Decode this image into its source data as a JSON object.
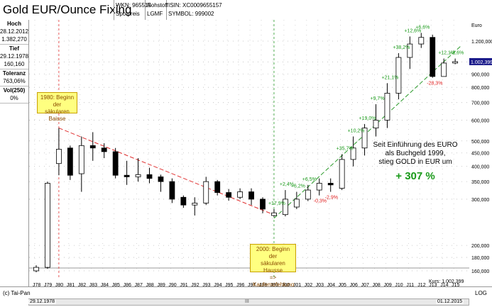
{
  "header": {
    "title": "Gold EUR/Ounce Fixing",
    "wkn_label": "WKN: 965515",
    "type": "Rohstoff",
    "isin": "ISIN: XC0009655157",
    "price_type": "Spotpreis",
    "exchange": "LGMF",
    "symbol": "SYMBOL: 999002"
  },
  "panel": {
    "high_label": "Hoch",
    "high_date": "28.12.2012",
    "high_value": "1.382,270",
    "low_label": "Tief",
    "low_date": "29.12.1978",
    "low_value": "160,160",
    "tol_label": "Toleranz",
    "tol_value": "763,06%",
    "vol_label": "Vol(250)",
    "vol_value": "0%"
  },
  "footer": {
    "credit": "(c) Tai-Pan",
    "log": "LOG",
    "start_date": "29.12.1978",
    "end_date": "01.12.2015",
    "kurs": "Kurs: 1.002,399",
    "scroll_mark": "III"
  },
  "annotations": {
    "box1980_line1": "1980: Beginn der",
    "box1980_line2": "säkularen Baisse",
    "box2000_line1": "2000: Beginn der",
    "box2000_line2": "säkularen Hausse",
    "box2000_line3": "=> Kaufempfehlung",
    "text_line1": "Seit Einführung des EURO",
    "text_line2": "als Buchgeld 1999,",
    "text_line3": "stieg  GOLD in EUR um",
    "big_pct": "+ 307 %"
  },
  "colors": {
    "up": "#ffffff",
    "down": "#000000",
    "pos_label": "#1a9a1a",
    "neg_label": "#e02020",
    "downtrend": "#e03030",
    "uptrend": "#2a9a2a",
    "vline_1980": "#e03030",
    "vline_1999": "#2a9a2a",
    "last_price_bg": "#1a1a8a"
  },
  "chart_data": {
    "type": "candlestick",
    "title": "Gold EUR/Ounce Fixing",
    "scale": "log",
    "currency_label": "Euro",
    "y_ticks": [
      160000,
      180000,
      200000,
      300000,
      350000,
      400000,
      450000,
      500000,
      600000,
      700000,
      800000,
      900000,
      1000000,
      1200000
    ],
    "y_tick_labels": [
      "160,000",
      "180,000",
      "200,000",
      "300,000",
      "350,000",
      "400,000",
      "450,000",
      "500,000",
      "600,000",
      "700,000",
      "800,000",
      "900,000",
      "1.000,000",
      "1.200,000"
    ],
    "last_price_label": "1.002,399",
    "x_labels": [
      "J78",
      "J79",
      "J80",
      "J81",
      "J82",
      "J83",
      "J84",
      "J85",
      "J86",
      "J87",
      "J88",
      "J89",
      "J90",
      "J91",
      "J92",
      "J93",
      "J94",
      "J95",
      "J96",
      "J97",
      "J98",
      "J99",
      "J00",
      "J01",
      "J02",
      "J03",
      "J04",
      "J05",
      "J06",
      "J07",
      "J08",
      "J09",
      "J10",
      "J11",
      "J12",
      "J13",
      "J14",
      "J15"
    ],
    "candles": [
      {
        "x": "J78",
        "open": 160000,
        "close": 165000,
        "high": 168000,
        "low": 158000
      },
      {
        "x": "J79",
        "open": 165000,
        "close": 345000,
        "high": 350000,
        "low": 163000
      },
      {
        "x": "J80",
        "open": 410000,
        "close": 465000,
        "high": 560000,
        "low": 370000
      },
      {
        "x": "J81",
        "open": 470000,
        "close": 370000,
        "high": 480000,
        "low": 355000
      },
      {
        "x": "J82",
        "open": 375000,
        "close": 480000,
        "high": 520000,
        "low": 320000
      },
      {
        "x": "J83",
        "open": 480000,
        "close": 470000,
        "high": 540000,
        "low": 420000
      },
      {
        "x": "J84",
        "open": 470000,
        "close": 455000,
        "high": 490000,
        "low": 430000
      },
      {
        "x": "J85",
        "open": 455000,
        "close": 370000,
        "high": 470000,
        "low": 360000
      },
      {
        "x": "J86",
        "open": 370000,
        "close": 365000,
        "high": 420000,
        "low": 340000
      },
      {
        "x": "J87",
        "open": 365000,
        "close": 372000,
        "high": 430000,
        "low": 350000
      },
      {
        "x": "J88",
        "open": 372000,
        "close": 360000,
        "high": 395000,
        "low": 345000
      },
      {
        "x": "J89",
        "open": 365000,
        "close": 350000,
        "high": 372000,
        "low": 320000
      },
      {
        "x": "J90",
        "open": 350000,
        "close": 300000,
        "high": 360000,
        "low": 290000
      },
      {
        "x": "J91",
        "open": 305000,
        "close": 285000,
        "high": 310000,
        "low": 278000
      },
      {
        "x": "J92",
        "open": 285000,
        "close": 290000,
        "high": 305000,
        "low": 260000
      },
      {
        "x": "J93",
        "open": 290000,
        "close": 350000,
        "high": 365000,
        "low": 285000
      },
      {
        "x": "J94",
        "open": 350000,
        "close": 318000,
        "high": 355000,
        "low": 310000
      },
      {
        "x": "J95",
        "open": 318000,
        "close": 305000,
        "high": 328000,
        "low": 296000
      },
      {
        "x": "J96",
        "open": 305000,
        "close": 320000,
        "high": 330000,
        "low": 300000
      },
      {
        "x": "J97",
        "open": 320000,
        "close": 300000,
        "high": 330000,
        "low": 285000
      },
      {
        "x": "J98",
        "open": 300000,
        "close": 275000,
        "high": 305000,
        "low": 265000
      },
      {
        "x": "J99",
        "open": 260000,
        "close": 266000,
        "high": 275000,
        "low": 257000
      },
      {
        "x": "J00",
        "open": 262000,
        "close": 300000,
        "high": 325000,
        "low": 258000
      },
      {
        "x": "J01",
        "open": 280000,
        "close": 300000,
        "high": 320000,
        "low": 275000
      },
      {
        "x": "J02",
        "open": 300000,
        "close": 325000,
        "high": 340000,
        "low": 295000
      },
      {
        "x": "J03",
        "open": 325000,
        "close": 345000,
        "high": 360000,
        "low": 310000
      },
      {
        "x": "J04",
        "open": 345000,
        "close": 340000,
        "high": 360000,
        "low": 320000
      },
      {
        "x": "J05",
        "open": 330000,
        "close": 425000,
        "high": 445000,
        "low": 325000
      },
      {
        "x": "J06",
        "open": 425000,
        "close": 470000,
        "high": 520000,
        "low": 400000
      },
      {
        "x": "J07",
        "open": 470000,
        "close": 560000,
        "high": 580000,
        "low": 440000
      },
      {
        "x": "J08",
        "open": 560000,
        "close": 600000,
        "high": 690000,
        "low": 520000
      },
      {
        "x": "J09",
        "open": 600000,
        "close": 760000,
        "high": 830000,
        "low": 560000
      },
      {
        "x": "J10",
        "open": 760000,
        "close": 1040000,
        "high": 1080000,
        "low": 720000
      },
      {
        "x": "J11",
        "open": 1040000,
        "close": 1170000,
        "high": 1250000,
        "low": 940000
      },
      {
        "x": "J12",
        "open": 1170000,
        "close": 1240000,
        "high": 1290000,
        "low": 1130000
      },
      {
        "x": "J13",
        "open": 1240000,
        "close": 880000,
        "high": 1270000,
        "low": 870000
      },
      {
        "x": "J14",
        "open": 880000,
        "close": 990000,
        "high": 1030000,
        "low": 880000
      },
      {
        "x": "J15",
        "open": 990000,
        "close": 1002399,
        "high": 1030000,
        "low": 980000
      }
    ],
    "pct_labels": [
      {
        "x": "J99",
        "text": "+17,9%",
        "value": 17.9
      },
      {
        "x": "J00",
        "text": "+2,4%",
        "value": 2.4
      },
      {
        "x": "J01",
        "text": "+6,2%",
        "value": 6.2
      },
      {
        "x": "J02",
        "text": "+6,5%",
        "value": 6.5
      },
      {
        "x": "J03",
        "text": "-0,3%",
        "value": -0.3
      },
      {
        "x": "J04",
        "text": "-2,9%",
        "value": -2.9
      },
      {
        "x": "J05",
        "text": "+35,7%",
        "value": 35.7
      },
      {
        "x": "J06",
        "text": "+10,2%",
        "value": 10.2
      },
      {
        "x": "J07",
        "text": "+19,0%",
        "value": 19.0
      },
      {
        "x": "J08",
        "text": "+9,7%",
        "value": 9.7
      },
      {
        "x": "J09",
        "text": "+21,1%",
        "value": 21.1
      },
      {
        "x": "J10",
        "text": "+38,2%",
        "value": 38.2
      },
      {
        "x": "J11",
        "text": "+12,6%",
        "value": 12.6
      },
      {
        "x": "J12",
        "text": "+6,6%",
        "value": 6.6
      },
      {
        "x": "J13",
        "text": "-28,3%",
        "value": -28.3
      },
      {
        "x": "J14",
        "text": "+12,1%",
        "value": 12.1
      },
      {
        "x": "J15",
        "text": "+2,6%",
        "value": 2.6
      }
    ]
  }
}
